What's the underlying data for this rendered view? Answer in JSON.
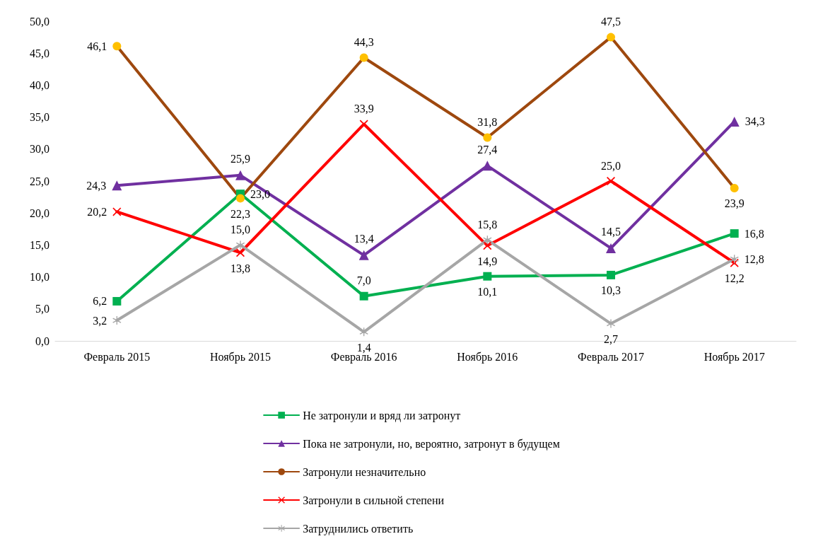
{
  "chart_data": {
    "type": "line",
    "categories": [
      "Февраль 2015",
      "Ноябрь 2015",
      "Февраль 2016",
      "Ноябрь 2016",
      "Февраль 2017",
      "Ноябрь 2017"
    ],
    "series": [
      {
        "name": "Не затронули и вряд ли затронут",
        "color": "#00b050",
        "marker": "square",
        "values": [
          6.2,
          23.0,
          7.0,
          10.1,
          10.3,
          16.8
        ],
        "value_labels": [
          "6,2",
          "23,0",
          "7,0",
          "10,1",
          "10,3",
          "16,8"
        ]
      },
      {
        "name": "Пока не затронули, но, вероятно, затронут в будущем",
        "color": "#7030a0",
        "marker": "triangle",
        "values": [
          24.3,
          25.9,
          13.4,
          27.4,
          14.5,
          34.3
        ],
        "value_labels": [
          "24,3",
          "25,9",
          "13,4",
          "27,4",
          "14,5",
          "34,3"
        ]
      },
      {
        "name": "Затронули незначительно",
        "color": "#9e480e",
        "marker": "circle",
        "colors": [
          "#ffc000",
          "#ffc000",
          "#ffc000",
          "#ffc000",
          "#ffc000",
          "#ffc000"
        ],
        "values": [
          46.1,
          22.3,
          44.3,
          31.8,
          47.5,
          23.9
        ],
        "value_labels": [
          "46,1",
          "22,3",
          "44,3",
          "31,8",
          "47,5",
          "23,9"
        ]
      },
      {
        "name": "Затронули в сильной степени",
        "color": "#ff0000",
        "marker": "cross",
        "values": [
          20.2,
          13.8,
          33.9,
          14.9,
          25.0,
          12.2
        ],
        "value_labels": [
          "20,2",
          "13,8",
          "33,9",
          "14,9",
          "25,0",
          "12,2"
        ]
      },
      {
        "name": "Затруднились ответить",
        "color": "#a6a6a6",
        "marker": "star",
        "values": [
          3.2,
          15.0,
          1.4,
          15.8,
          2.7,
          12.8
        ],
        "value_labels": [
          "3,2",
          "15,0",
          "1,4",
          "15,8",
          "2,7",
          "12,8"
        ]
      }
    ],
    "ylim": [
      0,
      50
    ],
    "yticks": [
      {
        "value": 0,
        "label": "0,0"
      },
      {
        "value": 5,
        "label": "5,0"
      },
      {
        "value": 10,
        "label": "10,0"
      },
      {
        "value": 15,
        "label": "15,0"
      },
      {
        "value": 20,
        "label": "20,0"
      },
      {
        "value": 25,
        "label": "25,0"
      },
      {
        "value": 30,
        "label": "30,0"
      },
      {
        "value": 35,
        "label": "35,0"
      },
      {
        "value": 40,
        "label": "40,0"
      },
      {
        "value": 45,
        "label": "45,0"
      },
      {
        "value": 50,
        "label": "50,0"
      }
    ],
    "grid": false,
    "legend": "bottom",
    "line_style": "solid"
  }
}
